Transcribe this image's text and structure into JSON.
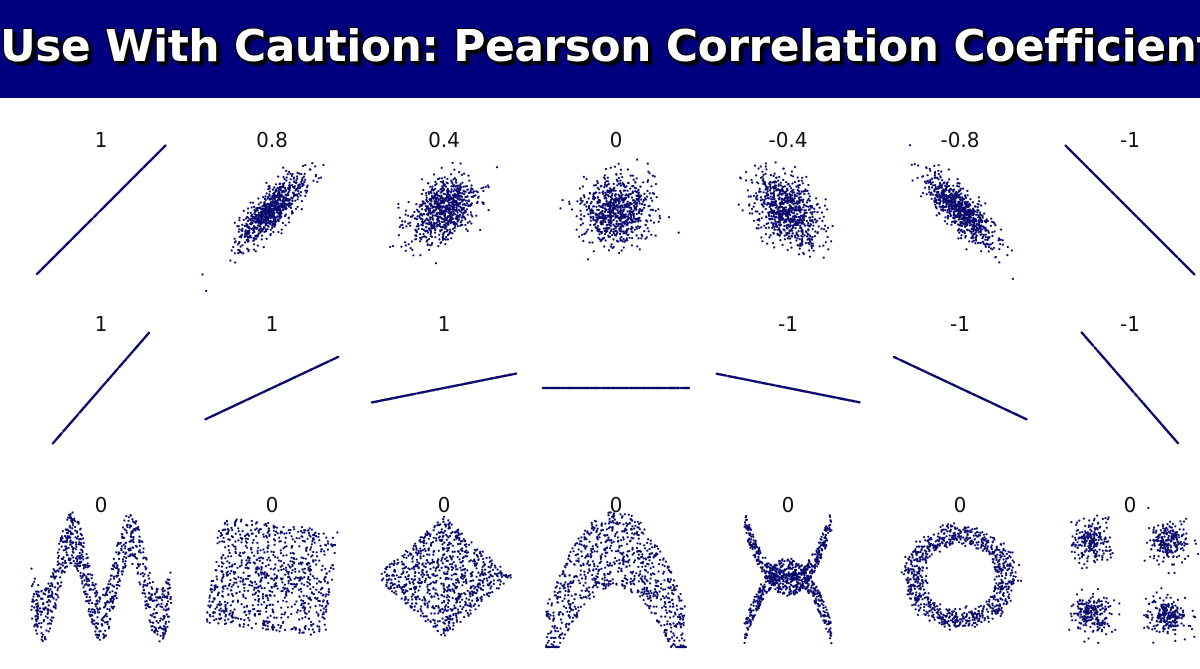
{
  "header": {
    "title": "Use With Caution: Pearson Correlation Coefficient",
    "background_color": "#010180",
    "text_color": "#ffffff"
  },
  "chart_data": {
    "type": "scatter",
    "point_color": "#0a0a6e",
    "rows": [
      {
        "panels": [
          {
            "label": "1",
            "pattern": "correlated",
            "r": 1
          },
          {
            "label": "0.8",
            "pattern": "correlated",
            "r": 0.8
          },
          {
            "label": "0.4",
            "pattern": "correlated",
            "r": 0.4
          },
          {
            "label": "0",
            "pattern": "correlated",
            "r": 0
          },
          {
            "label": "-0.4",
            "pattern": "correlated",
            "r": -0.4
          },
          {
            "label": "-0.8",
            "pattern": "correlated",
            "r": -0.8
          },
          {
            "label": "-1",
            "pattern": "correlated",
            "r": -1
          }
        ]
      },
      {
        "panels": [
          {
            "label": "1",
            "pattern": "line",
            "slope": 1.15
          },
          {
            "label": "1",
            "pattern": "line",
            "slope": 0.47
          },
          {
            "label": "1",
            "pattern": "line",
            "slope": 0.2
          },
          {
            "label": "",
            "pattern": "line",
            "slope": 0
          },
          {
            "label": "-1",
            "pattern": "line",
            "slope": -0.2
          },
          {
            "label": "-1",
            "pattern": "line",
            "slope": -0.47
          },
          {
            "label": "-1",
            "pattern": "line",
            "slope": -1.15
          }
        ]
      },
      {
        "panels": [
          {
            "label": "0",
            "pattern": "wave"
          },
          {
            "label": "0",
            "pattern": "rotated-square"
          },
          {
            "label": "0",
            "pattern": "diamond"
          },
          {
            "label": "0",
            "pattern": "parabola"
          },
          {
            "label": "0",
            "pattern": "x-shape"
          },
          {
            "label": "0",
            "pattern": "ring"
          },
          {
            "label": "0",
            "pattern": "four-clusters"
          }
        ]
      }
    ]
  }
}
